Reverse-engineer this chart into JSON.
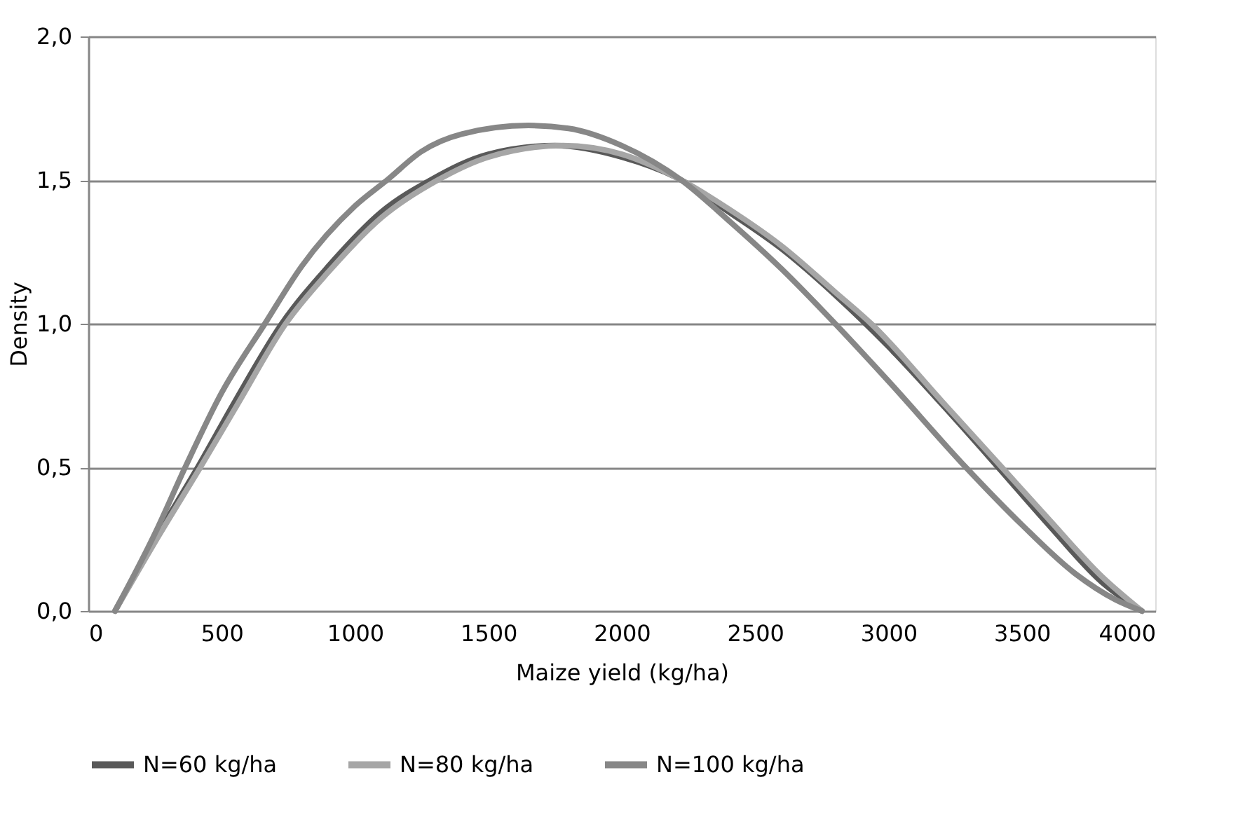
{
  "chart_data": {
    "type": "line",
    "xlabel": "Maize yield (kg/ha)",
    "ylabel": "Density",
    "xlim": [
      0,
      4000
    ],
    "xticks": [
      0,
      500,
      1000,
      1500,
      2000,
      2500,
      3000,
      3500,
      4000
    ],
    "ylim": [
      0,
      2.0
    ],
    "yticks": [
      {
        "value": 0,
        "label": "0,0"
      },
      {
        "value": 0.5,
        "label": "0,5"
      },
      {
        "value": 1.0,
        "label": "1,0"
      },
      {
        "value": 1.5,
        "label": "1,5"
      },
      {
        "value": 2.0,
        "label": "2,0"
      }
    ],
    "grid": "y",
    "legend": "bottom",
    "marker": "none",
    "line_style": "solid",
    "series": [
      {
        "name": "N=60 kg/ha",
        "color": "#595959",
        "x": [
          100,
          250,
          410,
          550,
          725,
          900,
          1100,
          1283,
          1500,
          1750,
          2000,
          2223,
          2400,
          2600,
          2800,
          3000,
          3200,
          3411,
          3600,
          3800,
          3950
        ],
        "values": [
          0,
          0.25,
          0.5,
          0.73,
          1.0,
          1.2,
          1.39,
          1.5,
          1.59,
          1.62,
          1.58,
          1.5,
          1.39,
          1.26,
          1.1,
          0.92,
          0.72,
          0.5,
          0.3,
          0.1,
          0
        ]
      },
      {
        "name": "N=80 kg/ha",
        "color": "#a6a6a6",
        "x": [
          100,
          250,
          420,
          560,
          740,
          900,
          1100,
          1310,
          1500,
          1780,
          2000,
          2223,
          2400,
          2600,
          2800,
          2935,
          3200,
          3425,
          3600,
          3800,
          3950
        ],
        "values": [
          0,
          0.24,
          0.5,
          0.72,
          1.0,
          1.18,
          1.37,
          1.5,
          1.58,
          1.62,
          1.59,
          1.5,
          1.4,
          1.27,
          1.11,
          1.0,
          0.73,
          0.5,
          0.32,
          0.12,
          0
        ]
      },
      {
        "name": "N=100 kg/ha",
        "color": "#878787",
        "x": [
          100,
          250,
          363,
          500,
          662,
          800,
          1000,
          1120,
          1250,
          1400,
          1650,
          1800,
          2000,
          2223,
          2400,
          2600,
          2800,
          3000,
          3290,
          3500,
          3700,
          3850,
          3950
        ],
        "values": [
          0,
          0.27,
          0.5,
          0.76,
          1.0,
          1.2,
          1.41,
          1.5,
          1.6,
          1.66,
          1.69,
          1.68,
          1.62,
          1.5,
          1.36,
          1.19,
          1.0,
          0.8,
          0.5,
          0.3,
          0.13,
          0.04,
          0
        ]
      }
    ]
  }
}
